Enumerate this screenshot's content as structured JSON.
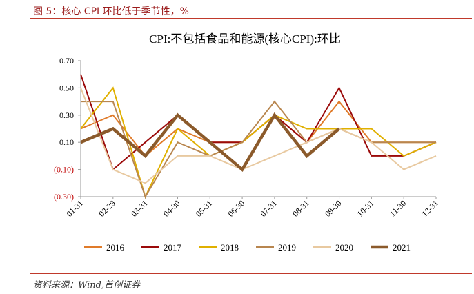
{
  "header": {
    "figure_title": "图 5：核心 CPI 环比低于季节性，%"
  },
  "footer": {
    "source": "资料来源：Wind,首创证券"
  },
  "chart_data": {
    "type": "line",
    "title": "CPI:不包括食品和能源(核心CPI):环比",
    "xlabel": "",
    "ylabel": "",
    "ylim": [
      -0.3,
      0.7
    ],
    "yticks": [
      -0.3,
      -0.1,
      0.1,
      0.3,
      0.5,
      0.7
    ],
    "ytick_labels": [
      "(0.30)",
      "(0.10)",
      "0.10",
      "0.30",
      "0.50",
      "0.70"
    ],
    "negative_tick_color": "#c00000",
    "positive_tick_color": "#000000",
    "grid": false,
    "legend_position": "bottom",
    "categories": [
      "01-31",
      "02-29",
      "03-31",
      "04-30",
      "05-31",
      "06-30",
      "07-31",
      "08-31",
      "09-30",
      "10-31",
      "11-30",
      "12-31"
    ],
    "series": [
      {
        "name": "2016",
        "color": "#e07b2a",
        "width": 2,
        "values": [
          0.2,
          0.3,
          0.0,
          0.2,
          0.1,
          0.1,
          0.3,
          0.1,
          0.4,
          0.1,
          0.1,
          0.1
        ]
      },
      {
        "name": "2017",
        "color": "#9b0a0a",
        "width": 2,
        "values": [
          0.6,
          -0.1,
          0.1,
          0.3,
          0.1,
          0.1,
          0.3,
          0.1,
          0.5,
          0.0,
          0.0,
          0.1
        ]
      },
      {
        "name": "2018",
        "color": "#e0b000",
        "width": 2,
        "values": [
          0.2,
          0.5,
          -0.3,
          0.2,
          0.0,
          0.1,
          0.3,
          0.2,
          0.2,
          0.2,
          0.0,
          0.1
        ]
      },
      {
        "name": "2019",
        "color": "#b8864f",
        "width": 2,
        "values": [
          0.4,
          0.4,
          -0.3,
          0.1,
          0.0,
          0.1,
          0.4,
          0.1,
          0.2,
          0.1,
          0.1,
          0.1
        ]
      },
      {
        "name": "2020",
        "color": "#e8c9a0",
        "width": 2,
        "values": [
          0.5,
          -0.1,
          -0.2,
          0.0,
          0.0,
          -0.1,
          0.0,
          0.1,
          0.2,
          0.1,
          -0.1,
          0.0
        ]
      },
      {
        "name": "2021",
        "color": "#8b5a2b",
        "width": 4.5,
        "values": [
          0.1,
          0.2,
          0.0,
          0.3,
          0.1,
          -0.1,
          0.3,
          0.0,
          0.2,
          null,
          null,
          null
        ]
      }
    ]
  }
}
